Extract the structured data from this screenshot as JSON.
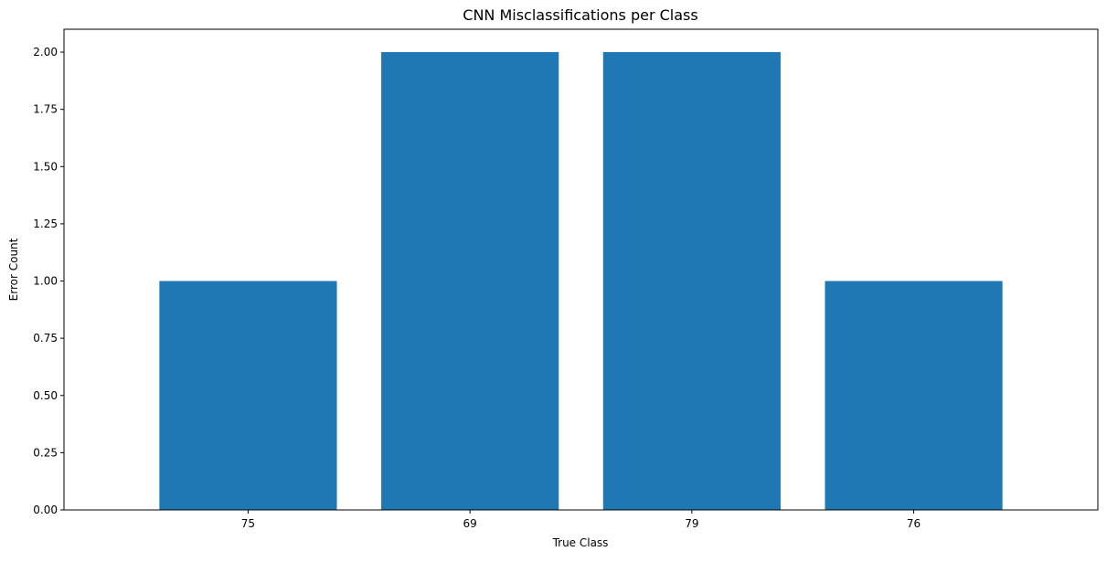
{
  "chart_data": {
    "type": "bar",
    "title": "CNN Misclassifications per Class",
    "xlabel": "True Class",
    "ylabel": "Error Count",
    "categories": [
      "75",
      "69",
      "79",
      "76"
    ],
    "values": [
      1,
      2,
      2,
      1
    ],
    "ylim": [
      0,
      2.1
    ],
    "yticks": [
      "0.00",
      "0.25",
      "0.50",
      "0.75",
      "1.00",
      "1.25",
      "1.50",
      "1.75",
      "2.00"
    ],
    "bar_color": "#1f77b4",
    "grid": false,
    "legend": "none"
  }
}
